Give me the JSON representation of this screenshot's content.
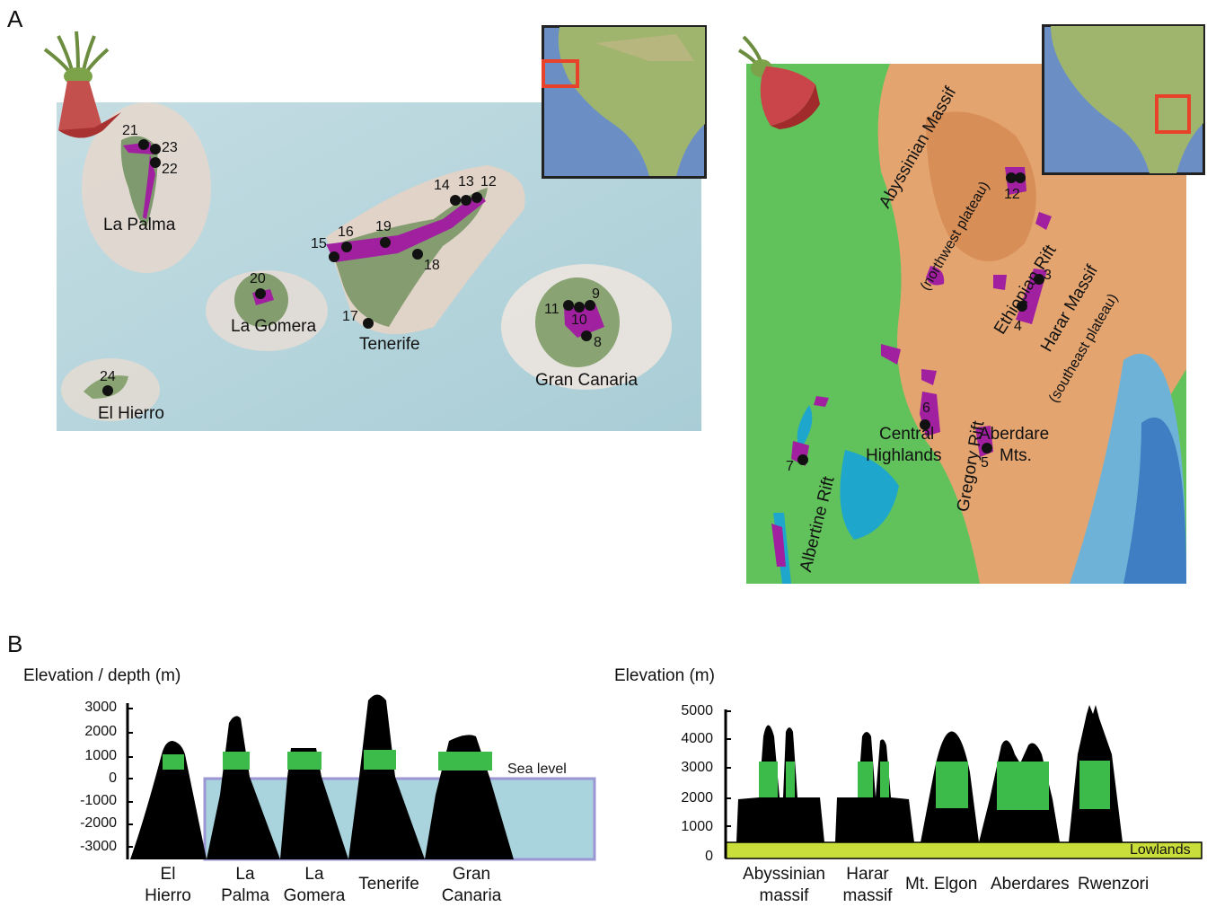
{
  "panel_a": {
    "letter": "A",
    "canary": {
      "islands": [
        "La Palma",
        "La Gomera",
        "Tenerife",
        "Gran Canaria",
        "El Hierro"
      ],
      "sites": [
        "21",
        "23",
        "22",
        "14",
        "13",
        "12",
        "15",
        "16",
        "19",
        "18",
        "17",
        "20",
        "11",
        "9",
        "10",
        "8",
        "24"
      ]
    },
    "africa": {
      "regions": [
        "Abyssinian Massif",
        "(northwest plateau)",
        "Ethiopian Rift",
        "Harar Massif",
        "(southeast plateau)",
        "Central",
        "Highlands",
        "Aberdare",
        "Mts.",
        "Gregory Rift",
        "Albertine Rift"
      ],
      "sites": [
        "12",
        "3",
        "4",
        "6",
        "5",
        "7"
      ]
    }
  },
  "panel_b": {
    "letter": "B",
    "left_chart": {
      "ylabel": "Elevation / depth (m)",
      "ticks": [
        "3000",
        "2000",
        "1000",
        "0",
        "-1000",
        "-2000",
        "-3000"
      ],
      "sea_label": "Sea level",
      "islands": [
        {
          "l1": "El",
          "l2": "Hierro"
        },
        {
          "l1": "La",
          "l2": "Palma"
        },
        {
          "l1": "La",
          "l2": "Gomera"
        },
        {
          "l1": "Tenerife",
          "l2": ""
        },
        {
          "l1": "Gran",
          "l2": "Canaria"
        }
      ]
    },
    "right_chart": {
      "ylabel": "Elevation (m)",
      "ticks": [
        "5000",
        "4000",
        "3000",
        "2000",
        "1000",
        "0"
      ],
      "lowlands_label": "Lowlands",
      "regions": [
        {
          "l1": "Abyssinian",
          "l2": "massif"
        },
        {
          "l1": "Harar",
          "l2": "massif"
        },
        {
          "l1": "Mt. Elgon",
          "l2": ""
        },
        {
          "l1": "Aberdares",
          "l2": ""
        },
        {
          "l1": "Rwenzori",
          "l2": ""
        }
      ]
    }
  },
  "colors": {
    "sea": "#a9d3dd",
    "vegetation_band": "#3dbb4a",
    "lowlands": "#c9dd3b",
    "distribution": "#a020a0",
    "inset_box": "#e8432a"
  }
}
